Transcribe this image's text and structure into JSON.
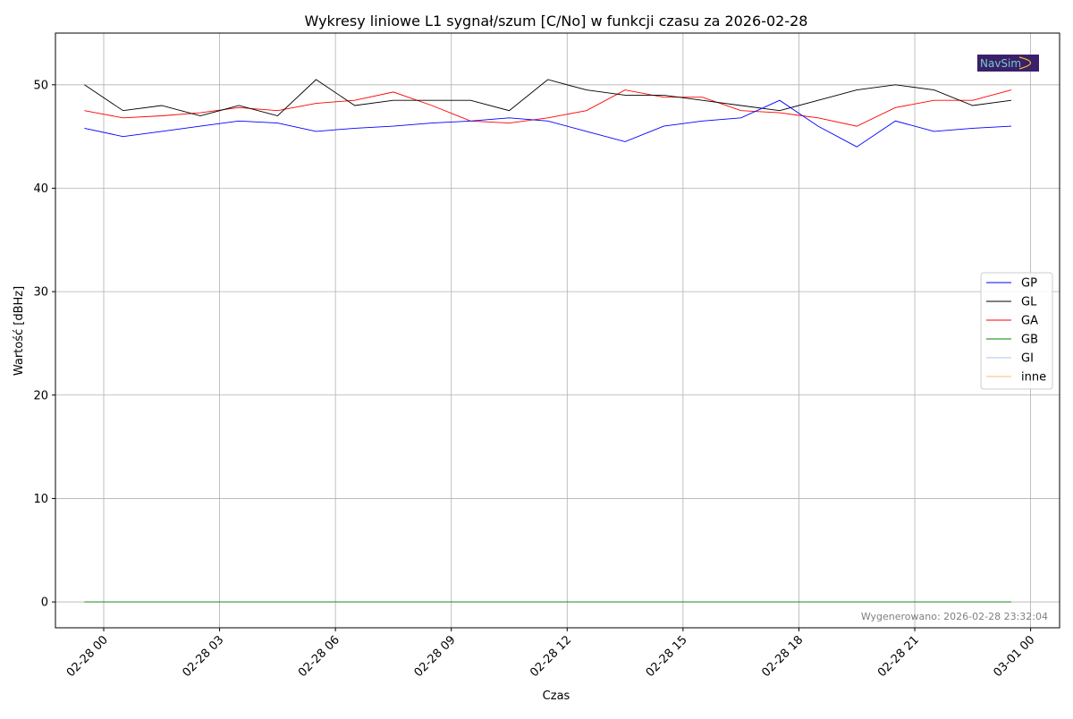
{
  "chart_data": {
    "type": "line",
    "title": "Wykresy liniowe L1 sygnał/szum [C/No] w funkcji czasu za 2026-02-28",
    "xlabel": "Czas",
    "ylabel": "Wartość [dBHz]",
    "ylim": [
      -2.5,
      55
    ],
    "xlim": [
      "2026-02-27 22:45",
      "2026-03-01 00:45"
    ],
    "yticks": [
      0,
      10,
      20,
      30,
      40,
      50
    ],
    "xticks": [
      {
        "t": "2026-02-28 00:00",
        "label": "02-28 00"
      },
      {
        "t": "2026-02-28 03:00",
        "label": "02-28 03"
      },
      {
        "t": "2026-02-28 06:00",
        "label": "02-28 06"
      },
      {
        "t": "2026-02-28 09:00",
        "label": "02-28 09"
      },
      {
        "t": "2026-02-28 12:00",
        "label": "02-28 12"
      },
      {
        "t": "2026-02-28 15:00",
        "label": "02-28 15"
      },
      {
        "t": "2026-02-28 18:00",
        "label": "02-28 18"
      },
      {
        "t": "2026-02-28 21:00",
        "label": "02-28 21"
      },
      {
        "t": "2026-03-01 00:00",
        "label": "03-01 00"
      }
    ],
    "grid": true,
    "legend_placement": "center-right",
    "footnote": "Wygenerowano: 2026-02-28 23:32:04",
    "logo_text": "NavSim",
    "series": [
      {
        "name": "GP",
        "color": "#0000ff",
        "x": [
          "2026-02-27 23:30",
          "2026-02-28 00:30",
          "2026-02-28 01:30",
          "2026-02-28 02:30",
          "2026-02-28 03:30",
          "2026-02-28 04:30",
          "2026-02-28 05:30",
          "2026-02-28 06:30",
          "2026-02-28 07:30",
          "2026-02-28 08:30",
          "2026-02-28 09:30",
          "2026-02-28 10:30",
          "2026-02-28 11:30",
          "2026-02-28 12:30",
          "2026-02-28 13:30",
          "2026-02-28 14:30",
          "2026-02-28 15:30",
          "2026-02-28 16:30",
          "2026-02-28 17:30",
          "2026-02-28 18:30",
          "2026-02-28 19:30",
          "2026-02-28 20:30",
          "2026-02-28 21:30",
          "2026-02-28 22:30",
          "2026-02-28 23:30"
        ],
        "values": [
          45.8,
          45.0,
          45.5,
          46.0,
          46.5,
          46.3,
          45.5,
          45.8,
          46.0,
          46.3,
          46.5,
          46.8,
          46.5,
          45.5,
          44.5,
          46.0,
          46.5,
          46.8,
          48.5,
          46.0,
          44.0,
          46.5,
          45.5,
          45.8,
          46.0
        ]
      },
      {
        "name": "GL",
        "color": "#000000",
        "x": [
          "2026-02-27 23:30",
          "2026-02-28 00:30",
          "2026-02-28 01:30",
          "2026-02-28 02:30",
          "2026-02-28 03:30",
          "2026-02-28 04:30",
          "2026-02-28 05:30",
          "2026-02-28 06:30",
          "2026-02-28 07:30",
          "2026-02-28 08:30",
          "2026-02-28 09:30",
          "2026-02-28 10:30",
          "2026-02-28 11:30",
          "2026-02-28 12:30",
          "2026-02-28 13:30",
          "2026-02-28 14:30",
          "2026-02-28 15:30",
          "2026-02-28 16:30",
          "2026-02-28 17:30",
          "2026-02-28 18:30",
          "2026-02-28 19:30",
          "2026-02-28 20:30",
          "2026-02-28 21:30",
          "2026-02-28 22:30",
          "2026-02-28 23:30"
        ],
        "values": [
          50.0,
          47.5,
          48.0,
          47.0,
          48.0,
          47.0,
          50.5,
          48.0,
          48.5,
          48.5,
          48.5,
          47.5,
          50.5,
          49.5,
          49.0,
          49.0,
          48.5,
          48.0,
          47.5,
          48.5,
          49.5,
          50.0,
          49.5,
          48.0,
          48.5
        ]
      },
      {
        "name": "GA",
        "color": "#ff0000",
        "x": [
          "2026-02-27 23:30",
          "2026-02-28 00:30",
          "2026-02-28 01:30",
          "2026-02-28 02:30",
          "2026-02-28 03:30",
          "2026-02-28 04:30",
          "2026-02-28 05:30",
          "2026-02-28 06:30",
          "2026-02-28 07:30",
          "2026-02-28 08:30",
          "2026-02-28 09:30",
          "2026-02-28 10:30",
          "2026-02-28 11:30",
          "2026-02-28 12:30",
          "2026-02-28 13:30",
          "2026-02-28 14:30",
          "2026-02-28 15:30",
          "2026-02-28 16:30",
          "2026-02-28 17:30",
          "2026-02-28 18:30",
          "2026-02-28 19:30",
          "2026-02-28 20:30",
          "2026-02-28 21:30",
          "2026-02-28 22:30",
          "2026-02-28 23:30"
        ],
        "values": [
          47.5,
          46.8,
          47.0,
          47.3,
          47.8,
          47.5,
          48.2,
          48.5,
          49.3,
          48.0,
          46.5,
          46.3,
          46.8,
          47.5,
          49.5,
          48.8,
          48.8,
          47.5,
          47.3,
          46.8,
          46.0,
          47.8,
          48.5,
          48.5,
          49.5
        ]
      },
      {
        "name": "GB",
        "color": "#008000",
        "x": [
          "2026-02-27 23:30",
          "2026-02-28 23:30"
        ],
        "values": [
          0,
          0
        ]
      },
      {
        "name": "GI",
        "color": "#aec7e8",
        "x": [
          "2026-02-27 23:30",
          "2026-02-28 23:30"
        ],
        "values": [
          0,
          0
        ]
      },
      {
        "name": "inne",
        "color": "#ffbb78",
        "x": [
          "2026-02-27 23:30",
          "2026-02-28 23:30"
        ],
        "values": [
          0,
          0
        ]
      }
    ]
  }
}
